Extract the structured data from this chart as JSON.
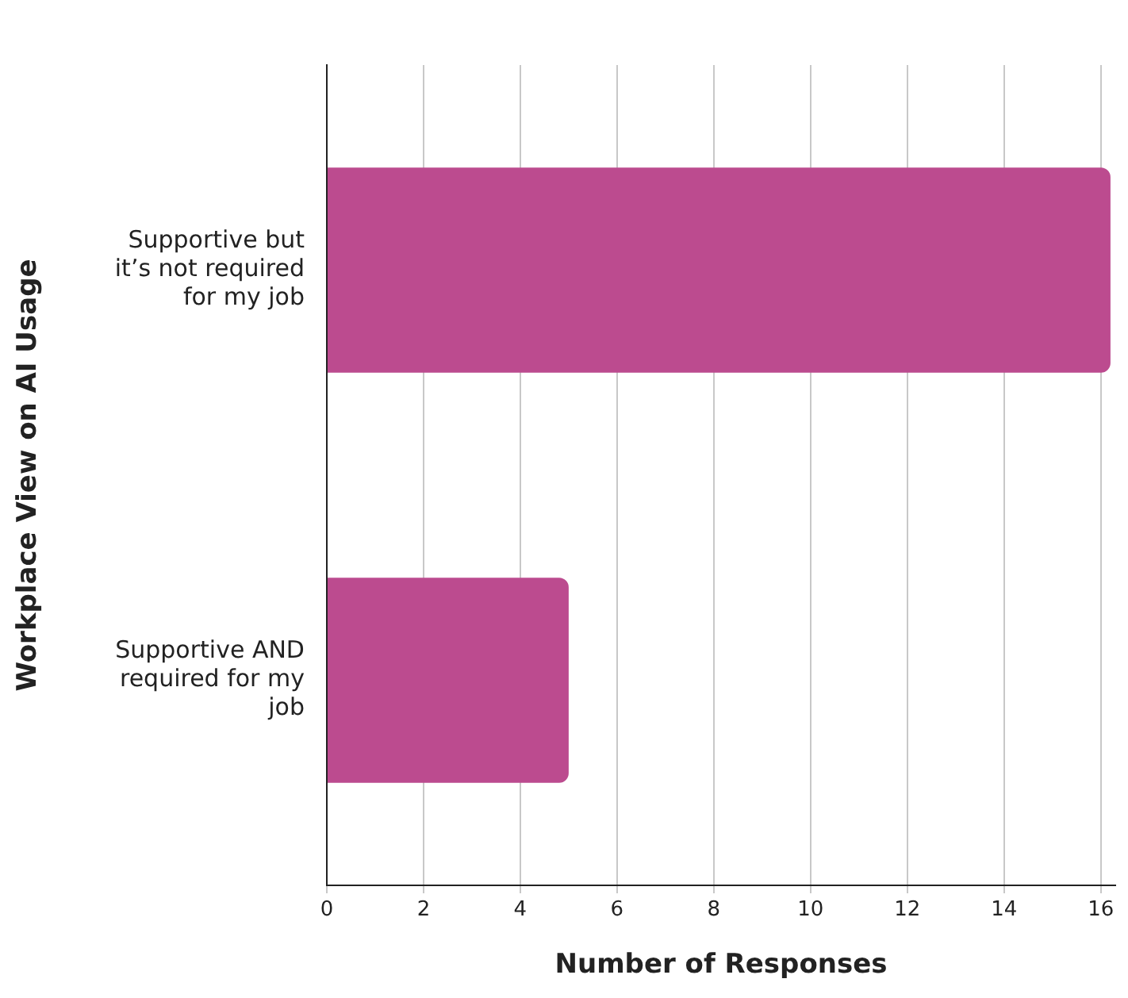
{
  "chart_data": {
    "type": "bar",
    "orientation": "horizontal",
    "xlabel": "Number of Responses",
    "ylabel": "Workplace View on AI Usage",
    "categories": [
      "Supportive but it’s not required for my job",
      "Supportive AND required for my job"
    ],
    "values": [
      16.2,
      5
    ],
    "color": "#bc4b8f",
    "xlim": [
      0,
      16.3
    ],
    "xticks": [
      0,
      2,
      4,
      6,
      8,
      10,
      12,
      14,
      16
    ],
    "grid": "x"
  }
}
